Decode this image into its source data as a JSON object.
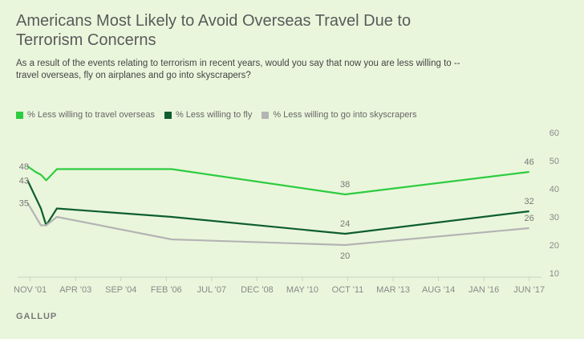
{
  "header": {
    "title": "Americans Most Likely to Avoid Overseas Travel Due to Terrorism Concerns",
    "subtitle": "As a result of the events relating to terrorism in recent years, would you say that now you are less willing to -- travel overseas, fly on airplanes and go into skyscrapers?"
  },
  "footer": {
    "source": "GALLUP"
  },
  "chart_data": {
    "type": "line",
    "x_ticks": [
      "NOV '01",
      "APR '03",
      "SEP '04",
      "FEB '06",
      "JUL '07",
      "DEC '08",
      "MAY '10",
      "OCT '11",
      "MAR '13",
      "AUG '14",
      "JAN '16",
      "JUN '17"
    ],
    "x_tick_dates": [
      "2001-11",
      "2003-04",
      "2004-09",
      "2006-02",
      "2007-07",
      "2008-12",
      "2010-05",
      "2011-10",
      "2013-03",
      "2014-08",
      "2016-01",
      "2017-06"
    ],
    "y_ticks": [
      10,
      20,
      30,
      40,
      50,
      60
    ],
    "ylim": [
      10,
      60
    ],
    "xlim": [
      "2001-09",
      "2017-07"
    ],
    "grid": false,
    "legend_placement": "top-left",
    "series": [
      {
        "name": "% Less willing to travel overseas",
        "color": "#2ecc40",
        "points": [
          {
            "x": "2001-10",
            "y": 48,
            "label": "48"
          },
          {
            "x": "2002-01",
            "y": 46
          },
          {
            "x": "2002-03",
            "y": 45
          },
          {
            "x": "2002-05",
            "y": 43
          },
          {
            "x": "2002-09",
            "y": 47
          },
          {
            "x": "2006-04",
            "y": 47
          },
          {
            "x": "2011-09",
            "y": 38,
            "label": "38"
          },
          {
            "x": "2017-06",
            "y": 46,
            "label": "46"
          }
        ]
      },
      {
        "name": "% Less willing to fly",
        "color": "#0e5e30",
        "points": [
          {
            "x": "2001-10",
            "y": 43,
            "label": "43"
          },
          {
            "x": "2002-03",
            "y": 33
          },
          {
            "x": "2002-05",
            "y": 27
          },
          {
            "x": "2002-09",
            "y": 33
          },
          {
            "x": "2006-04",
            "y": 30
          },
          {
            "x": "2011-09",
            "y": 24,
            "label": "24"
          },
          {
            "x": "2017-06",
            "y": 32,
            "label": "32"
          }
        ]
      },
      {
        "name": "% Less willing to go into skyscrapers",
        "color": "#b4b4b4",
        "points": [
          {
            "x": "2001-10",
            "y": 35,
            "label": "35"
          },
          {
            "x": "2002-03",
            "y": 27
          },
          {
            "x": "2002-05",
            "y": 27
          },
          {
            "x": "2002-09",
            "y": 30
          },
          {
            "x": "2006-04",
            "y": 22
          },
          {
            "x": "2011-09",
            "y": 20,
            "label": "20"
          },
          {
            "x": "2017-06",
            "y": 26,
            "label": "26"
          }
        ]
      }
    ]
  }
}
